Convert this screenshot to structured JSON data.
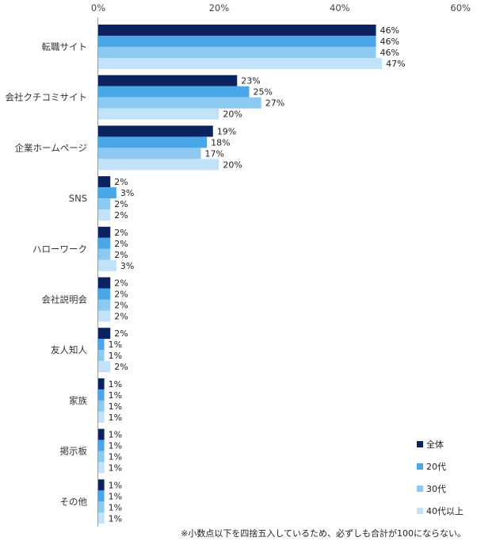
{
  "chart_data": {
    "type": "bar",
    "orientation": "horizontal",
    "categories": [
      "転職サイト",
      "会社クチコミサイト",
      "企業ホームページ",
      "SNS",
      "ハローワーク",
      "会社説明会",
      "友人知人",
      "家族",
      "掲示板",
      "その他"
    ],
    "series": [
      {
        "name": "全体",
        "color": "#0b2460",
        "values": [
          46,
          23,
          19,
          2,
          2,
          2,
          2,
          1,
          1,
          1
        ]
      },
      {
        "name": "20代",
        "color": "#4ba6e8",
        "values": [
          46,
          25,
          18,
          3,
          2,
          2,
          1,
          1,
          1,
          1
        ]
      },
      {
        "name": "30代",
        "color": "#8ccaf2",
        "values": [
          46,
          27,
          17,
          2,
          2,
          2,
          1,
          1,
          1,
          1
        ]
      },
      {
        "name": "40代以上",
        "color": "#c1e2f8",
        "values": [
          47,
          20,
          20,
          2,
          3,
          2,
          2,
          1,
          1,
          1
        ]
      }
    ],
    "value_suffix": "%",
    "xlim": [
      0,
      60
    ],
    "x_ticks": [
      "0%",
      "20%",
      "40%",
      "60%"
    ],
    "x_tick_values": [
      0,
      20,
      40,
      60
    ],
    "grid": false,
    "legend_position": "bottom-right",
    "footnote": "※小数点以下を四捨五入しているため、必ずしも合計が100にならない。"
  }
}
